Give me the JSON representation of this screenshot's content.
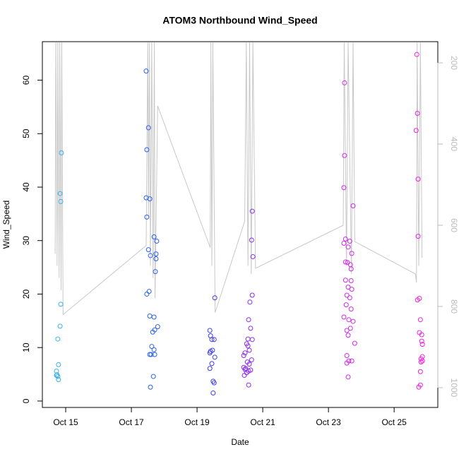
{
  "chart_data": {
    "type": "scatter",
    "title": "ATOM3 Northbound Wind_Speed",
    "x_label": "Date",
    "y_label": "Wind_Speed",
    "xlim": [
      14.29,
      26.33
    ],
    "xticks": [
      {
        "value": 15,
        "label": "Oct 15"
      },
      {
        "value": 17,
        "label": "Oct 17"
      },
      {
        "value": 19,
        "label": "Oct 19"
      },
      {
        "value": 21,
        "label": "Oct 21"
      },
      {
        "value": 23,
        "label": "Oct 23"
      },
      {
        "value": 25,
        "label": "Oct 25"
      }
    ],
    "ylim": [
      -1.2,
      67.2
    ],
    "yticks": [
      0,
      10,
      20,
      30,
      40,
      50,
      60
    ],
    "y2lim": [
      1048.7,
      147.8
    ],
    "y2ticks": [
      200,
      400,
      600,
      800,
      1000
    ],
    "y2_color": "#bbbbbb",
    "series": [
      {
        "color": "#3ab0ee",
        "x": [
          14.87,
          14.83,
          14.85,
          14.85,
          14.83,
          14.76,
          14.78,
          14.72,
          14.72,
          14.76,
          14.78,
          14.74
        ],
        "values": [
          46.4,
          38.8,
          37.3,
          18.1,
          14.0,
          11.6,
          6.8,
          5.6,
          4.8,
          4.6,
          4.0,
          4.9
        ]
      },
      {
        "color": "#2a62ee",
        "x": [
          17.45,
          17.52,
          17.47,
          17.45,
          17.56,
          17.47,
          17.69,
          17.77,
          17.52,
          17.58,
          17.75,
          17.75,
          17.73,
          17.54,
          17.47,
          17.69,
          17.56,
          17.8,
          17.71,
          17.65,
          17.62,
          17.69,
          17.6,
          17.71,
          17.56,
          17.67,
          17.58
        ],
        "values": [
          61.7,
          51.1,
          47.0,
          38.0,
          37.8,
          34.4,
          30.7,
          29.9,
          28.3,
          27.2,
          27.5,
          26.6,
          24.2,
          20.5,
          20.0,
          15.7,
          15.9,
          13.9,
          13.3,
          12.9,
          10.2,
          9.6,
          8.7,
          8.7,
          8.7,
          4.6,
          2.6
        ]
      },
      {
        "color": "#3a3ae8",
        "x": [
          19.39,
          19.41,
          19.45,
          19.52,
          19.41,
          19.47,
          19.39,
          19.54,
          19.45,
          19.39,
          19.54,
          19.49,
          19.52,
          19.49
        ],
        "values": [
          13.2,
          12.2,
          11.5,
          11.5,
          9.3,
          9.5,
          9.0,
          8.2,
          7.0,
          6.1,
          19.3,
          3.7,
          3.4,
          1.5
        ]
      },
      {
        "color": "#8a2aee",
        "x": [
          20.68,
          20.66,
          20.7,
          20.68,
          20.61,
          20.57,
          20.63,
          20.55,
          20.68,
          20.51,
          20.55,
          20.59,
          20.46,
          20.42,
          20.66,
          20.53,
          20.59,
          20.42,
          20.46,
          20.57,
          20.51,
          20.63,
          20.44,
          20.57,
          20.48
        ],
        "values": [
          35.5,
          30.1,
          27.0,
          19.8,
          18.5,
          15.2,
          13.6,
          11.6,
          11.5,
          10.7,
          10.3,
          9.5,
          9.0,
          8.5,
          7.7,
          7.3,
          6.9,
          6.3,
          5.9,
          5.6,
          5.3,
          5.8,
          4.8,
          3.0,
          6.1
        ]
      },
      {
        "color": "#d02ae6",
        "x": [
          23.49,
          23.49,
          23.47,
          23.75,
          23.52,
          23.65,
          23.47,
          23.6,
          23.71,
          23.52,
          23.58,
          23.67,
          23.69,
          23.52,
          23.69,
          23.6,
          23.71,
          23.56,
          23.65,
          23.54,
          23.69,
          23.47,
          23.62,
          23.75,
          23.56,
          23.67,
          23.6,
          23.8,
          23.56,
          23.71,
          23.62,
          23.56,
          23.6
        ],
        "values": [
          59.5,
          45.9,
          39.9,
          36.5,
          30.3,
          29.9,
          29.5,
          28.8,
          27.6,
          26.0,
          25.9,
          25.5,
          24.7,
          22.6,
          22.5,
          21.3,
          20.9,
          19.8,
          19.3,
          18.0,
          17.2,
          15.7,
          15.2,
          14.9,
          13.2,
          13.6,
          12.3,
          10.8,
          8.5,
          7.5,
          7.5,
          7.1,
          4.5
        ]
      },
      {
        "color": "#ee22dc",
        "x": [
          25.69,
          25.71,
          25.67,
          25.73,
          25.73,
          25.77,
          25.71,
          25.8,
          25.77,
          25.84,
          25.84,
          25.86,
          25.86,
          25.82,
          25.86,
          25.82,
          25.8,
          25.8,
          25.75
        ],
        "values": [
          64.8,
          53.8,
          50.6,
          41.5,
          30.8,
          19.2,
          18.9,
          15.2,
          12.8,
          12.4,
          11.2,
          10.6,
          8.3,
          7.9,
          7.5,
          7.3,
          5.5,
          3.0,
          2.6
        ]
      },
      {
        "type": "line",
        "axis": "y2",
        "color": "#c8c8c8",
        "x": [
          14.68,
          14.7,
          14.74,
          14.76,
          14.8,
          14.82,
          14.86,
          14.88,
          14.92,
          17.45,
          17.5,
          17.52,
          17.55,
          17.58,
          17.62,
          17.66,
          17.7,
          17.72,
          17.8,
          19.4,
          19.42,
          19.45,
          19.48,
          19.55,
          20.45,
          20.5,
          20.55,
          20.6,
          20.65,
          20.7,
          20.78,
          23.45,
          23.48,
          23.55,
          23.6,
          23.7,
          23.75,
          23.8,
          25.65,
          25.68,
          25.7,
          25.75,
          25.8,
          25.85
        ],
        "values": [
          670,
          150,
          700,
          150,
          730,
          150,
          760,
          150,
          820,
          650,
          150,
          580,
          150,
          700,
          150,
          730,
          150,
          780,
          306,
          655,
          150,
          700,
          150,
          815,
          590,
          150,
          700,
          150,
          720,
          150,
          706,
          600,
          150,
          700,
          150,
          720,
          150,
          640,
          720,
          741,
          150,
          700,
          150,
          680
        ]
      }
    ]
  }
}
